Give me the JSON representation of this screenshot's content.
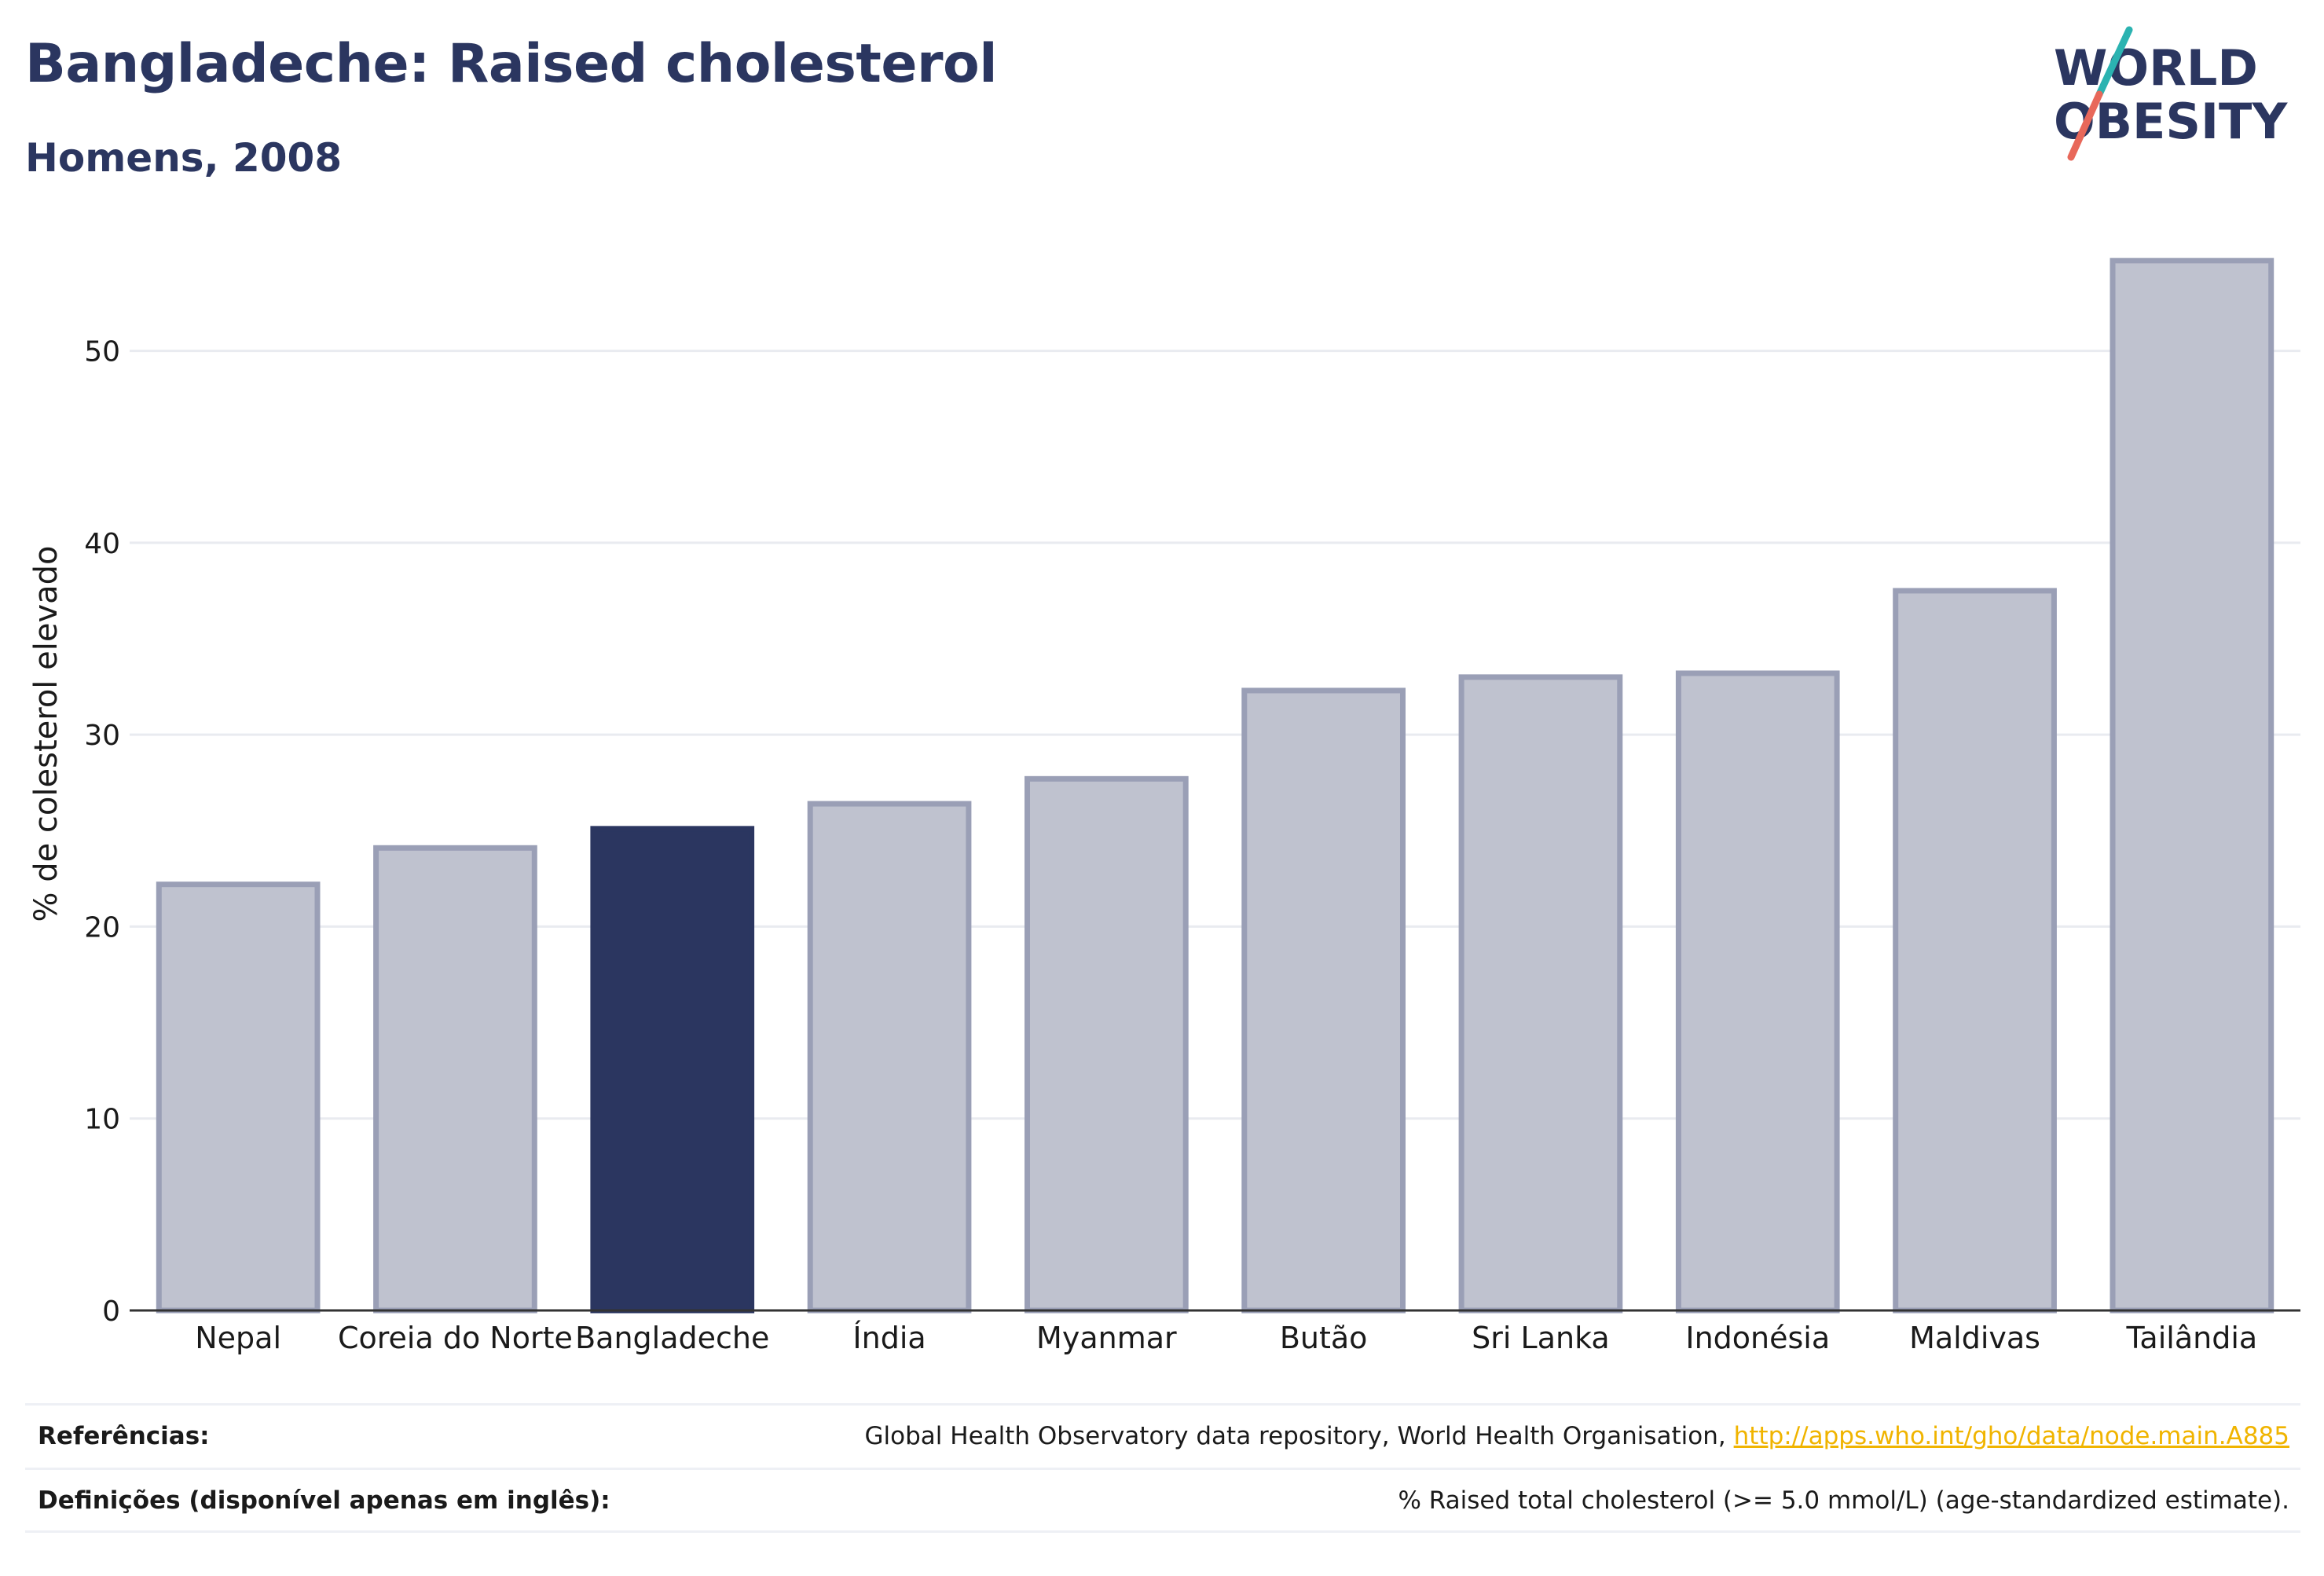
{
  "header": {
    "title": "Bangladeche: Raised cholesterol",
    "subtitle": "Homens, 2008"
  },
  "logo": {
    "line1": "WORLD",
    "line2": "OBESITY",
    "accent_teal": "#2bb3b1",
    "accent_coral": "#e8685a"
  },
  "colors": {
    "bar_default": "#bfc2cf",
    "bar_default_stroke": "#9a9fb6",
    "bar_highlight": "#2b3660",
    "text_dark": "#2b3660"
  },
  "chart_data": {
    "type": "bar",
    "categories": [
      "Nepal",
      "Coreia do Norte",
      "Bangladeche",
      "Índia",
      "Myanmar",
      "Butão",
      "Sri Lanka",
      "Indonésia",
      "Maldivas",
      "Tailândia"
    ],
    "values": [
      22.2,
      24.1,
      25.1,
      26.4,
      27.7,
      32.3,
      33.0,
      33.2,
      37.5,
      54.7
    ],
    "highlight": "Bangladeche",
    "ylabel": "% de colesterol elevado",
    "xlabel": "",
    "ylim": [
      0,
      56
    ],
    "yticks": [
      0,
      10,
      20,
      30,
      40,
      50
    ],
    "grid": true
  },
  "footer": {
    "references_label": "Referências:",
    "references_text": "Global Health Observatory data repository, World Health Organisation, ",
    "references_link": "http://apps.who.int/gho/data/node.main.A885",
    "definitions_label": "Definições (disponível apenas em inglês):",
    "definitions_text": "% Raised total cholesterol (>= 5.0 mmol/L) (age-standardized estimate)."
  }
}
